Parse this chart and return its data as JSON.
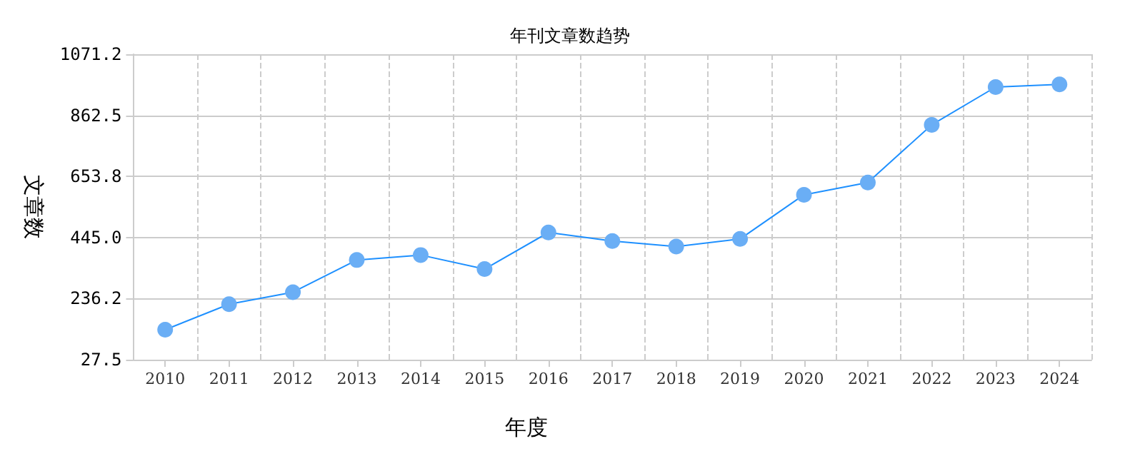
{
  "chart_data": {
    "type": "line",
    "title": "年刊文章数趋势",
    "xlabel": "年度",
    "ylabel": "文章数",
    "categories": [
      "2010",
      "2011",
      "2012",
      "2013",
      "2014",
      "2015",
      "2016",
      "2017",
      "2018",
      "2019",
      "2020",
      "2021",
      "2022",
      "2023",
      "2024"
    ],
    "series": [
      {
        "color": "#1e90ff",
        "values": [
          130,
          217,
          258,
          368,
          385,
          337,
          462,
          433,
          414,
          440,
          591,
          633,
          830,
          959,
          968
        ]
      }
    ],
    "ylim": [
      27.5,
      1071.2
    ],
    "yticks": [
      27.5,
      236.2,
      {
        "value": 445.0,
        "label": "445.0"
      },
      653.8,
      862.5,
      1071.2
    ],
    "grid": true,
    "marker": "circle",
    "line_style": "solid"
  }
}
